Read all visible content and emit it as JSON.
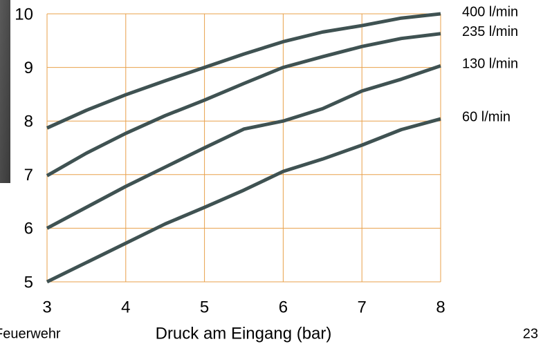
{
  "chart_data": {
    "type": "line",
    "xlabel": "Druck am Eingang (bar)",
    "x": [
      3,
      3.5,
      4,
      4.5,
      5,
      5.5,
      6,
      6.5,
      7,
      7.5,
      8
    ],
    "xlim": [
      3,
      8
    ],
    "xticks": [
      3,
      4,
      5,
      6,
      7,
      8
    ],
    "ylim": [
      5,
      10
    ],
    "yticks": [
      5,
      6,
      7,
      8,
      9,
      10
    ],
    "grid": true,
    "grid_color": "#e8a04a",
    "series": [
      {
        "name": "400 l/min",
        "color": "#3f5252",
        "values": [
          7.87,
          8.2,
          8.49,
          8.75,
          9.0,
          9.25,
          9.48,
          9.66,
          9.78,
          9.92,
          10.0
        ]
      },
      {
        "name": "235 l/min",
        "color": "#3f5252",
        "values": [
          6.98,
          7.4,
          7.77,
          8.1,
          8.39,
          8.7,
          9.0,
          9.2,
          9.39,
          9.54,
          9.63
        ]
      },
      {
        "name": "130 l/min",
        "color": "#3f5252",
        "values": [
          6.0,
          6.39,
          6.78,
          7.14,
          7.5,
          7.85,
          8.0,
          8.23,
          8.56,
          8.78,
          9.03
        ]
      },
      {
        "name": "60 l/min",
        "color": "#3f5252",
        "values": [
          5.0,
          5.36,
          5.72,
          6.08,
          6.39,
          6.71,
          7.06,
          7.29,
          7.55,
          7.84,
          8.04
        ]
      }
    ]
  },
  "footer": {
    "left": "Feuerwehr",
    "page": "23"
  }
}
